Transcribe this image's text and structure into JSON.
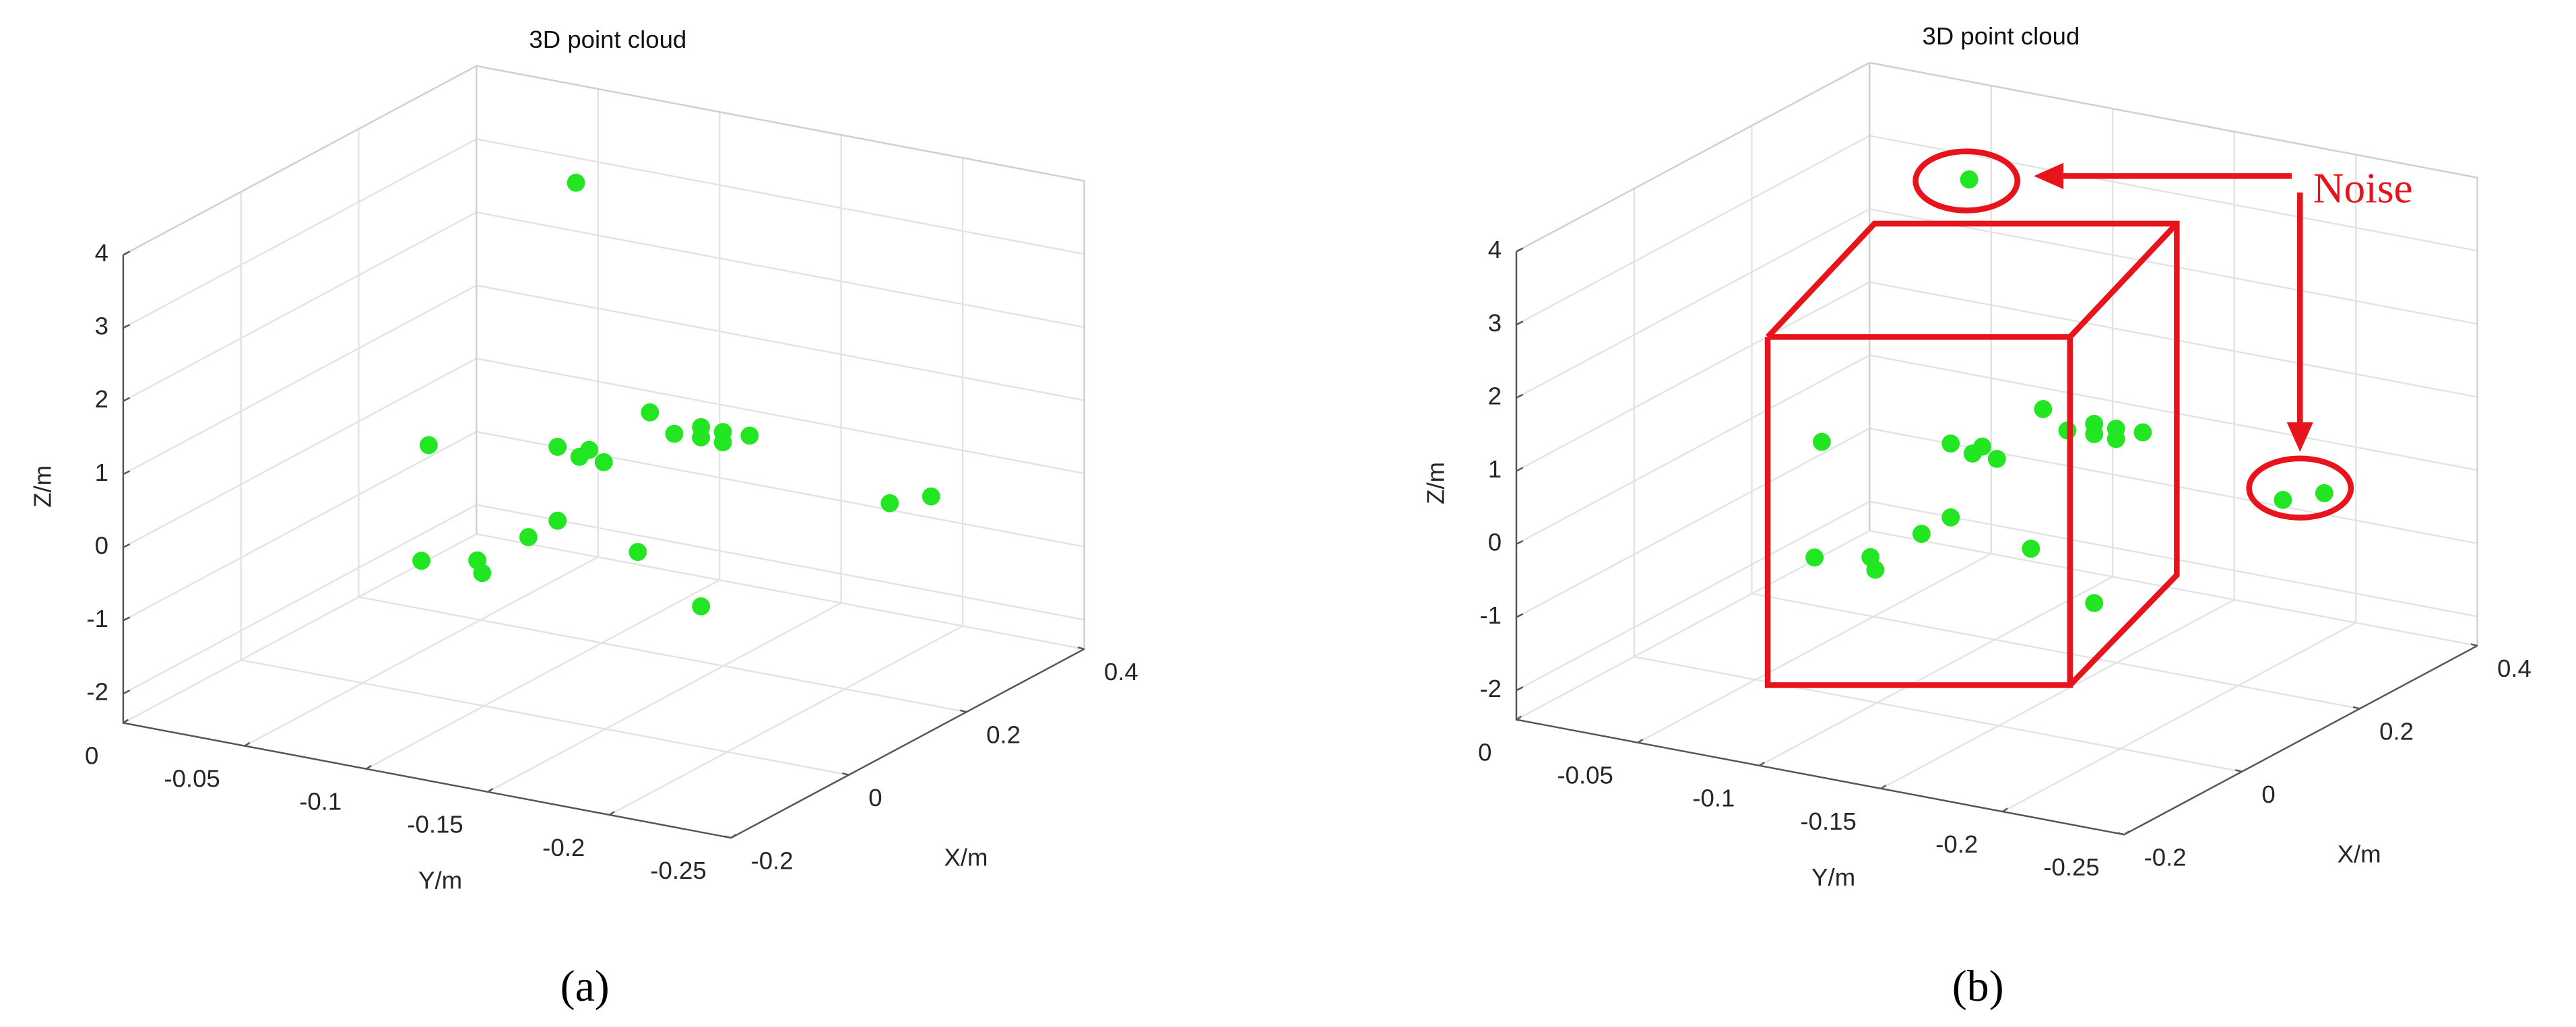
{
  "chart_data": [
    {
      "type": "scatter3d",
      "title": "3D point cloud",
      "x_label": "X/m",
      "y_label": "Y/m",
      "z_label": "Z/m",
      "panel_label": "(a)",
      "x": [
        0.28,
        0.1,
        0.1,
        0.1,
        0.1,
        0.1,
        0.1,
        0.1,
        0.1,
        0.1,
        0.1,
        0.1,
        0.1,
        0.1,
        0.1,
        0.1,
        0.1,
        0.1,
        0.1,
        0.1,
        0.4,
        0.4
      ],
      "y": [
        -0.07,
        -0.053,
        -0.05,
        -0.073,
        -0.075,
        -0.094,
        -0.106,
        -0.106,
        -0.115,
        -0.119,
        -0.125,
        -0.144,
        -0.154,
        -0.165,
        -0.165,
        -0.174,
        -0.174,
        -0.185,
        -0.139,
        -0.165,
        -0.17,
        -0.187
      ],
      "z": [
        3.36,
        0.44,
        -1.16,
        -1.01,
        -1.17,
        -0.56,
        -0.26,
        0.75,
        0.67,
        0.79,
        0.66,
        1.46,
        1.23,
        1.39,
        1.25,
        1.38,
        1.24,
        1.4,
        -0.48,
        -1.06,
        -0.91,
        -0.71
      ],
      "color": "#22e622",
      "xlim": [
        -0.2,
        0.4
      ],
      "ylim": [
        -0.25,
        0
      ],
      "zlim": [
        -2.4,
        4
      ],
      "xticks": [
        -0.2,
        0,
        0.2,
        0.4
      ],
      "yticks": [
        -0.25,
        -0.2,
        -0.15,
        -0.1,
        -0.05,
        0
      ],
      "zticks": [
        -2,
        -1,
        0,
        1,
        2,
        3,
        4
      ],
      "grid": true
    },
    {
      "type": "scatter3d",
      "title": "3D point cloud",
      "x_label": "X/m",
      "y_label": "Y/m",
      "z_label": "Z/m",
      "panel_label": "(b)",
      "x": [
        0.28,
        0.1,
        0.1,
        0.1,
        0.1,
        0.1,
        0.1,
        0.1,
        0.1,
        0.1,
        0.1,
        0.1,
        0.1,
        0.1,
        0.1,
        0.1,
        0.1,
        0.1,
        0.1,
        0.1,
        0.4,
        0.4
      ],
      "y": [
        -0.07,
        -0.053,
        -0.05,
        -0.073,
        -0.075,
        -0.094,
        -0.106,
        -0.106,
        -0.115,
        -0.119,
        -0.125,
        -0.144,
        -0.154,
        -0.165,
        -0.165,
        -0.174,
        -0.174,
        -0.185,
        -0.139,
        -0.165,
        -0.17,
        -0.187
      ],
      "z": [
        3.36,
        0.44,
        -1.16,
        -1.01,
        -1.17,
        -0.56,
        -0.26,
        0.75,
        0.67,
        0.79,
        0.66,
        1.46,
        1.23,
        1.39,
        1.25,
        1.38,
        1.24,
        1.4,
        -0.48,
        -1.06,
        -0.91,
        -0.71
      ],
      "color": "#22e622",
      "xlim": [
        -0.2,
        0.4
      ],
      "ylim": [
        -0.25,
        0
      ],
      "zlim": [
        -2.4,
        4
      ],
      "xticks": [
        -0.2,
        0,
        0.2,
        0.4
      ],
      "yticks": [
        -0.25,
        -0.2,
        -0.15,
        -0.1,
        -0.05,
        0
      ],
      "zticks": [
        -2,
        -1,
        0,
        1,
        2,
        3,
        4
      ],
      "grid": true,
      "annotations": [
        "Noise"
      ]
    }
  ]
}
